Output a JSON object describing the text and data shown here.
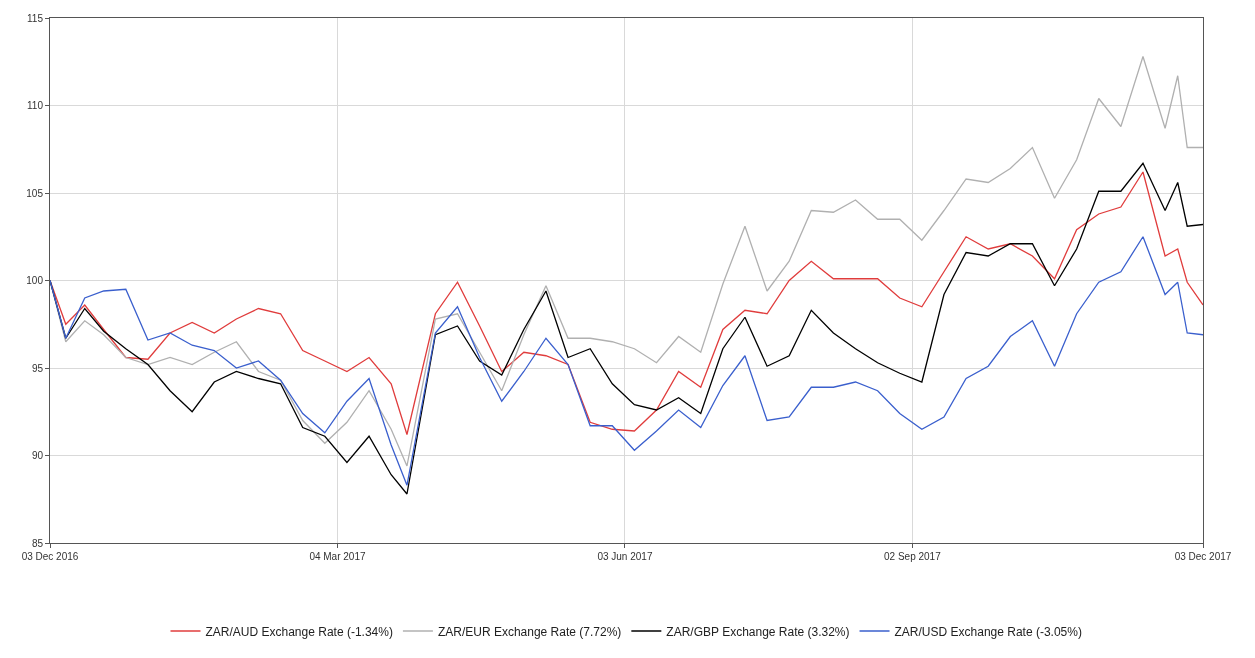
{
  "chart_data": {
    "type": "line",
    "x": [
      "2016-12-03",
      "2016-12-08",
      "2016-12-14",
      "2016-12-20",
      "2016-12-27",
      "2017-01-03",
      "2017-01-10",
      "2017-01-17",
      "2017-01-24",
      "2017-01-31",
      "2017-02-07",
      "2017-02-14",
      "2017-02-21",
      "2017-02-28",
      "2017-03-07",
      "2017-03-14",
      "2017-03-21",
      "2017-03-26",
      "2017-04-04",
      "2017-04-11",
      "2017-04-18",
      "2017-04-25",
      "2017-05-02",
      "2017-05-09",
      "2017-05-16",
      "2017-05-23",
      "2017-05-30",
      "2017-06-06",
      "2017-06-13",
      "2017-06-20",
      "2017-06-27",
      "2017-07-04",
      "2017-07-11",
      "2017-07-18",
      "2017-07-25",
      "2017-08-01",
      "2017-08-08",
      "2017-08-15",
      "2017-08-22",
      "2017-08-29",
      "2017-09-05",
      "2017-09-12",
      "2017-09-19",
      "2017-09-26",
      "2017-10-03",
      "2017-10-10",
      "2017-10-17",
      "2017-10-24",
      "2017-10-31",
      "2017-11-07",
      "2017-11-14",
      "2017-11-21",
      "2017-11-25",
      "2017-11-28",
      "2017-12-03"
    ],
    "series": [
      {
        "name": "ZAR/AUD Exchange Rate (-1.34%)",
        "color": "#e03c3c",
        "values": [
          100,
          97.5,
          98.6,
          97.2,
          95.6,
          95.5,
          97.0,
          97.6,
          97.0,
          97.8,
          98.4,
          98.1,
          96.0,
          95.4,
          94.8,
          95.6,
          94.1,
          91.2,
          98.1,
          99.9,
          97.4,
          94.8,
          95.9,
          95.7,
          95.2,
          91.9,
          91.5,
          91.4,
          92.6,
          94.8,
          93.9,
          97.2,
          98.3,
          98.1,
          100,
          101.1,
          100.1,
          100.1,
          100.1,
          99.0,
          98.5,
          100.5,
          102.5,
          101.8,
          102.1,
          101.4,
          100.1,
          102.9,
          103.8,
          104.2,
          106.2,
          101.4,
          101.8,
          99.9,
          98.6
        ]
      },
      {
        "name": "ZAR/EUR Exchange Rate (7.72%)",
        "color": "#b0b0b0",
        "values": [
          100,
          96.5,
          97.7,
          96.9,
          95.6,
          95.2,
          95.6,
          95.2,
          95.9,
          96.5,
          94.8,
          94.3,
          92.0,
          90.7,
          91.9,
          93.7,
          91.5,
          89.4,
          97.8,
          98.1,
          95.9,
          93.7,
          96.9,
          99.7,
          96.7,
          96.7,
          96.5,
          96.1,
          95.3,
          96.8,
          95.9,
          99.8,
          103.1,
          99.4,
          101.1,
          104.0,
          103.9,
          104.6,
          103.5,
          103.5,
          102.3,
          104.0,
          105.8,
          105.6,
          106.4,
          107.6,
          104.7,
          106.9,
          110.4,
          108.8,
          112.8,
          108.7,
          111.7,
          107.6,
          107.6
        ]
      },
      {
        "name": "ZAR/GBP Exchange Rate (3.32%)",
        "color": "#000000",
        "values": [
          100,
          96.7,
          98.4,
          97.1,
          96.1,
          95.2,
          93.7,
          92.5,
          94.2,
          94.8,
          94.4,
          94.1,
          91.6,
          91.1,
          89.6,
          91.1,
          88.9,
          87.8,
          96.9,
          97.4,
          95.4,
          94.6,
          97.2,
          99.4,
          95.6,
          96.1,
          94.1,
          92.9,
          92.6,
          93.3,
          92.4,
          96.1,
          97.9,
          95.1,
          95.7,
          98.3,
          97.0,
          96.1,
          95.3,
          94.7,
          94.2,
          99.2,
          101.6,
          101.4,
          102.1,
          102.1,
          99.7,
          101.8,
          105.1,
          105.1,
          106.7,
          104.0,
          105.6,
          103.1,
          103.2
        ]
      },
      {
        "name": "ZAR/USD Exchange Rate (-3.05%)",
        "color": "#3a5fcd",
        "values": [
          100,
          96.7,
          99.0,
          99.4,
          99.5,
          96.6,
          97.0,
          96.3,
          96.0,
          95.0,
          95.4,
          94.3,
          92.4,
          91.3,
          93.1,
          94.4,
          90.6,
          88.3,
          97.0,
          98.5,
          95.6,
          93.1,
          94.8,
          96.7,
          95.2,
          91.7,
          91.7,
          90.3,
          91.4,
          92.6,
          91.6,
          94.0,
          95.7,
          92.0,
          92.2,
          93.9,
          93.9,
          94.2,
          93.7,
          92.4,
          91.5,
          92.2,
          94.4,
          95.1,
          96.8,
          97.7,
          95.1,
          98.1,
          99.9,
          100.5,
          102.5,
          99.2,
          99.9,
          97.0,
          96.9
        ]
      }
    ],
    "xlim": [
      "2016-12-03",
      "2017-12-03"
    ],
    "xticks": [
      {
        "value": "2016-12-03",
        "label": "03 Dec 2016"
      },
      {
        "value": "2017-03-04",
        "label": "04 Mar 2017"
      },
      {
        "value": "2017-06-03",
        "label": "03 Jun 2017"
      },
      {
        "value": "2017-09-02",
        "label": "02 Sep 2017"
      },
      {
        "value": "2017-12-03",
        "label": "03 Dec 2017"
      }
    ],
    "ylim": [
      85,
      115
    ],
    "yticks": [
      85,
      90,
      95,
      100,
      105,
      110,
      115
    ],
    "grid": true,
    "legend": "bottom",
    "marker": "none",
    "line_style": "solid"
  }
}
